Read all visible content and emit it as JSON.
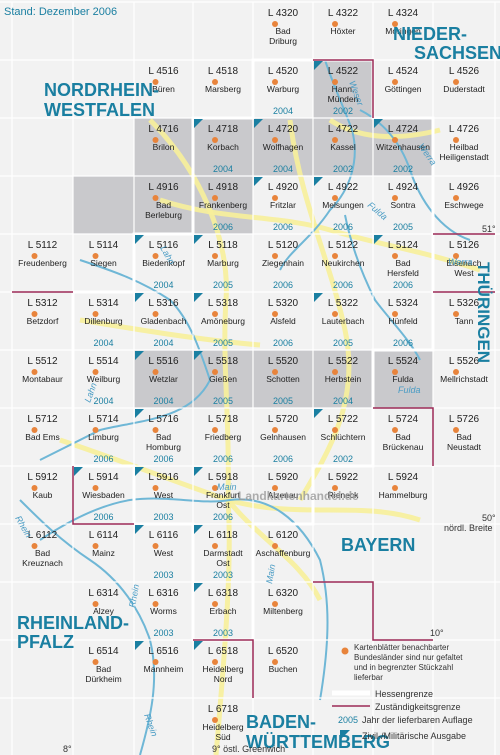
{
  "header": {
    "stand": "Stand: Dezember 2006"
  },
  "colors": {
    "available_fill": "#c9c9cc",
    "outside_fill": "#f2f2f2",
    "grid_line": "#ffffff",
    "hessen_border": "#ffffff",
    "zustandigkeit_border": "#9b2a56",
    "state_label": "#1a7fa1",
    "river": "#6fb7d6",
    "road": "#f7f09a",
    "city": "#e8843c",
    "year": "#1a7fa1",
    "military": "#1a7fa1"
  },
  "state_labels": {
    "nds_line1": "NIEDER-",
    "nds_line2": "SACHSEN",
    "nrw_line1": "NORDRHEIN-",
    "nrw_line2": "WESTFALEN",
    "thueringen": "THÜRINGEN",
    "bayern": "BAYERN",
    "rlp_line1": "RHEINLAND-",
    "rlp_line2": "PFALZ",
    "bw_line1": "BADEN-",
    "bw_line2": "WÜRTTEMBERG"
  },
  "rivers": {
    "weser": "Weser",
    "werra_north": "Werra",
    "werra_south": "Werra",
    "fulda_north": "Fulda",
    "fulda_south": "Fulda",
    "lahn_north": "Lahn",
    "lahn_south": "Lahn",
    "main_west": "Main",
    "main_east": "Main",
    "rhein_north": "Rhein",
    "rhein_mid": "Rhein",
    "rhein_south": "Rhein"
  },
  "coordinates": {
    "lat51": "51°",
    "lat50": "50°",
    "lat50_label": "nördl. Breite",
    "lon8": "8°",
    "lon9": "9° östl. Greenwich",
    "lon10": "10°"
  },
  "watermark": "Landkartenhandel.de",
  "sheets": [
    {
      "id": "L 4320",
      "places": [
        "Bad",
        "Driburg"
      ],
      "year": ""
    },
    {
      "id": "L 4322",
      "places": [
        "Höxter"
      ],
      "year": ""
    },
    {
      "id": "L 4324",
      "places": [
        "Moringen"
      ],
      "year": ""
    },
    {
      "id": "L 4516",
      "places": [
        "Büren"
      ],
      "year": ""
    },
    {
      "id": "L 4518",
      "places": [
        "Marsberg"
      ],
      "year": ""
    },
    {
      "id": "L 4520",
      "places": [
        "Warburg"
      ],
      "year": "2004"
    },
    {
      "id": "L 4522",
      "places": [
        "Hann.",
        "Münden"
      ],
      "year": "2002"
    },
    {
      "id": "L 4524",
      "places": [
        "Göttingen"
      ],
      "year": ""
    },
    {
      "id": "L 4526",
      "places": [
        "Duderstadt"
      ],
      "year": ""
    },
    {
      "id": "L 4716",
      "places": [
        "Brilon"
      ],
      "year": ""
    },
    {
      "id": "L 4718",
      "places": [
        "Korbach"
      ],
      "year": "2004"
    },
    {
      "id": "L 4720",
      "places": [
        "Wolfhagen"
      ],
      "year": "2004"
    },
    {
      "id": "L 4722",
      "places": [
        "Kassel"
      ],
      "year": "2002"
    },
    {
      "id": "L 4724",
      "places": [
        "Witzenhausen"
      ],
      "year": "2002"
    },
    {
      "id": "L 4726",
      "places": [
        "Heilbad",
        "Heiligenstadt"
      ],
      "year": ""
    },
    {
      "id": "L 4916",
      "places": [
        "Bad",
        "Berleburg"
      ],
      "year": ""
    },
    {
      "id": "L 4918",
      "places": [
        "Frankenberg"
      ],
      "year": "2006"
    },
    {
      "id": "L 4920",
      "places": [
        "Fritzlar"
      ],
      "year": "2006"
    },
    {
      "id": "L 4922",
      "places": [
        "Melsungen"
      ],
      "year": "2006"
    },
    {
      "id": "L 4924",
      "places": [
        "Sontra"
      ],
      "year": "2005"
    },
    {
      "id": "L 4926",
      "places": [
        "Eschwege"
      ],
      "year": ""
    },
    {
      "id": "L 5112",
      "places": [
        "Freudenberg"
      ],
      "year": ""
    },
    {
      "id": "L 5114",
      "places": [
        "Siegen"
      ],
      "year": ""
    },
    {
      "id": "L 5116",
      "places": [
        "Biedenkopf"
      ],
      "year": "2004"
    },
    {
      "id": "L 5118",
      "places": [
        "Marburg"
      ],
      "year": "2005"
    },
    {
      "id": "L 5120",
      "places": [
        "Ziegenhain"
      ],
      "year": "2006"
    },
    {
      "id": "L 5122",
      "places": [
        "Neukirchen"
      ],
      "year": "2006"
    },
    {
      "id": "L 5124",
      "places": [
        "Bad",
        "Hersfeld"
      ],
      "year": "2006"
    },
    {
      "id": "L 5126",
      "places": [
        "Eisenach",
        "West"
      ],
      "year": ""
    },
    {
      "id": "L 5312",
      "places": [
        "Betzdorf"
      ],
      "year": ""
    },
    {
      "id": "L 5314",
      "places": [
        "Dillenburg"
      ],
      "year": "2004"
    },
    {
      "id": "L 5316",
      "places": [
        "Gladenbach"
      ],
      "year": "2004"
    },
    {
      "id": "L 5318",
      "places": [
        "Amöneburg"
      ],
      "year": "2005"
    },
    {
      "id": "L 5320",
      "places": [
        "Alsfeld"
      ],
      "year": "2006"
    },
    {
      "id": "L 5322",
      "places": [
        "Lauterbach"
      ],
      "year": "2005"
    },
    {
      "id": "L 5324",
      "places": [
        "Hünfeld"
      ],
      "year": "2006"
    },
    {
      "id": "L 5326",
      "places": [
        "Tann"
      ],
      "year": ""
    },
    {
      "id": "L 5512",
      "places": [
        "Montabaur"
      ],
      "year": ""
    },
    {
      "id": "L 5514",
      "places": [
        "Weilburg"
      ],
      "year": "2004"
    },
    {
      "id": "L 5516",
      "places": [
        "Wetzlar"
      ],
      "year": "2004"
    },
    {
      "id": "L 5518",
      "places": [
        "Gießen"
      ],
      "year": "2005"
    },
    {
      "id": "L 5520",
      "places": [
        "Schotten"
      ],
      "year": "2005"
    },
    {
      "id": "L 5522",
      "places": [
        "Herbstein"
      ],
      "year": "2004"
    },
    {
      "id": "L 5524",
      "places": [
        "Fulda"
      ],
      "year": ""
    },
    {
      "id": "L 5526",
      "places": [
        "Mellrichstadt"
      ],
      "year": ""
    },
    {
      "id": "L 5712",
      "places": [
        "Bad Ems"
      ],
      "year": ""
    },
    {
      "id": "L 5714",
      "places": [
        "Limburg"
      ],
      "year": "2006"
    },
    {
      "id": "L 5716",
      "places": [
        "Bad",
        "Homburg"
      ],
      "year": "2006"
    },
    {
      "id": "L 5718",
      "places": [
        "Friedberg"
      ],
      "year": "2006"
    },
    {
      "id": "L 5720",
      "places": [
        "Gelnhausen"
      ],
      "year": "2006"
    },
    {
      "id": "L 5722",
      "places": [
        "Schlüchtern"
      ],
      "year": "2002"
    },
    {
      "id": "L 5724",
      "places": [
        "Bad",
        "Brückenau"
      ],
      "year": ""
    },
    {
      "id": "L 5726",
      "places": [
        "Bad",
        "Neustadt"
      ],
      "year": ""
    },
    {
      "id": "L 5912",
      "places": [
        "Kaub"
      ],
      "year": ""
    },
    {
      "id": "L 5914",
      "places": [
        "Wiesbaden"
      ],
      "year": "2006"
    },
    {
      "id": "L 5916",
      "places": [
        "West"
      ],
      "year": "2003"
    },
    {
      "id": "L 5918",
      "places": [
        "Frankfurt",
        "Ost"
      ],
      "year": "2006"
    },
    {
      "id": "L 5920",
      "places": [
        "Alzenau"
      ],
      "year": ""
    },
    {
      "id": "L 5922",
      "places": [
        "Rieneck"
      ],
      "year": ""
    },
    {
      "id": "L 5924",
      "places": [
        "Hammelburg"
      ],
      "year": ""
    },
    {
      "id": "L 6112",
      "places": [
        "Bad",
        "Kreuznach"
      ],
      "year": ""
    },
    {
      "id": "L 6114",
      "places": [
        "Mainz"
      ],
      "year": ""
    },
    {
      "id": "L 6116",
      "places": [
        "West"
      ],
      "year": "2003"
    },
    {
      "id": "L 6118",
      "places": [
        "Darmstadt",
        "Ost"
      ],
      "year": "2003"
    },
    {
      "id": "L 6120",
      "places": [
        "Aschaffenburg"
      ],
      "year": ""
    },
    {
      "id": "L 6314",
      "places": [
        "Alzey"
      ],
      "year": ""
    },
    {
      "id": "L 6316",
      "places": [
        "Worms"
      ],
      "year": "2003"
    },
    {
      "id": "L 6318",
      "places": [
        "Erbach"
      ],
      "year": "2003"
    },
    {
      "id": "L 6320",
      "places": [
        "Miltenberg"
      ],
      "year": ""
    },
    {
      "id": "L 6514",
      "places": [
        "Bad",
        "Dürkheim"
      ],
      "year": ""
    },
    {
      "id": "L 6516",
      "places": [
        "Mannheim"
      ],
      "year": ""
    },
    {
      "id": "L 6518",
      "places": [
        "Heidelberg",
        "Nord"
      ],
      "year": ""
    },
    {
      "id": "L 6520",
      "places": [
        "Buchen"
      ],
      "year": ""
    },
    {
      "id": "L 6718",
      "places": [
        "Heidelberg",
        "Süd"
      ],
      "year": ""
    }
  ],
  "legend": {
    "note": [
      "Kartenblätter benachbarter",
      "Bundesländer sind nur gefaltet",
      "und in begrenzter Stückzahl",
      "lieferbar"
    ],
    "hessen": "Hessengrenze",
    "zustandigkeit": "Zuständigkeitsgrenze",
    "year_sample": "2005",
    "year": "Jahr der lieferbaren Auflage",
    "military": "Zivil-/Militärische Ausgabe"
  }
}
